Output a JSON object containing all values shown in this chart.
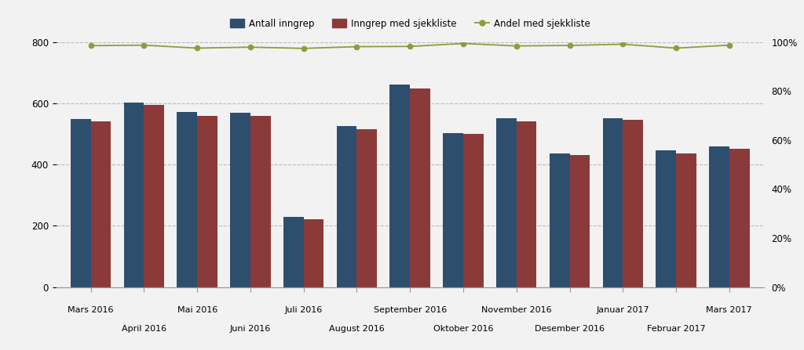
{
  "categories": [
    "Mars 2016",
    "April 2016",
    "Mai 2016",
    "Juni 2016",
    "Juli 2016",
    "August 2016",
    "September 2016",
    "Oktober 2016",
    "November 2016",
    "Desember 2016",
    "Januar 2017",
    "Februar 2017",
    "Mars 2017"
  ],
  "antall_inngrep": [
    548,
    603,
    572,
    570,
    228,
    526,
    660,
    503,
    551,
    436,
    550,
    447,
    458
  ],
  "inngrep_med_sjekkliste": [
    540,
    595,
    558,
    558,
    222,
    516,
    648,
    500,
    542,
    430,
    545,
    436,
    452
  ],
  "andel_med_sjekkliste": [
    0.985,
    0.987,
    0.975,
    0.979,
    0.974,
    0.981,
    0.982,
    0.994,
    0.984,
    0.986,
    0.991,
    0.975,
    0.987
  ],
  "bar_color_blue": "#2E4E6E",
  "bar_color_red": "#8B3A3A",
  "line_color": "#8B9E3A",
  "line_marker": "o",
  "ylim_left": [
    0,
    800
  ],
  "ylim_right": [
    0.0,
    1.0
  ],
  "yticks_left": [
    0,
    200,
    400,
    600,
    800
  ],
  "yticks_right": [
    0.0,
    0.2,
    0.4,
    0.6,
    0.8,
    1.0
  ],
  "legend_labels": [
    "Antall inngrep",
    "Inngrep med sjekkliste",
    "Andel med sjekkliste"
  ],
  "background_color": "#F2F2F2",
  "grid_color": "#BBBBBB",
  "bar_width": 0.38,
  "figsize": [
    10.24,
    4.47
  ],
  "dpi": 100
}
